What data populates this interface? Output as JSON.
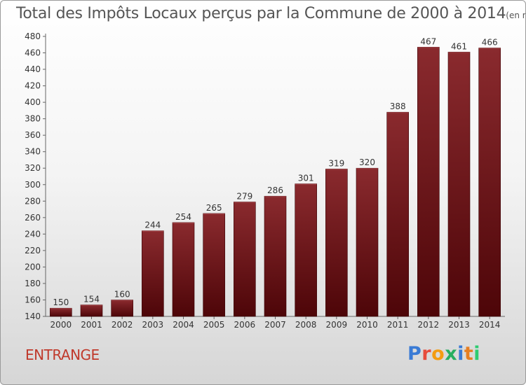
{
  "header": {
    "title": "Total des Impôts Locaux perçus par la Commune de 2000 à 2014",
    "unit": "(en milliers d'€)"
  },
  "footer": {
    "commune": "ENTRANGE",
    "brand": "Proxiti",
    "brand_colors": [
      "#3a7bd5",
      "#e74c3c",
      "#f39c12",
      "#27ae60",
      "#3a7bd5",
      "#e67e22",
      "#2ecc71"
    ]
  },
  "colors": {
    "bar": "#7b1c20",
    "bar_dark": "#4d0508",
    "axis_text": "#333333",
    "commune_text": "#c0392b"
  },
  "chart_data": {
    "type": "bar",
    "categories": [
      "2000",
      "2001",
      "2002",
      "2003",
      "2004",
      "2005",
      "2006",
      "2007",
      "2008",
      "2009",
      "2010",
      "2011",
      "2012",
      "2013",
      "2014"
    ],
    "values": [
      150,
      154,
      160,
      244,
      254,
      265,
      279,
      286,
      301,
      319,
      320,
      388,
      467,
      461,
      466
    ],
    "ylim": [
      140,
      480
    ],
    "yticks": [
      140,
      160,
      180,
      200,
      220,
      240,
      260,
      280,
      300,
      320,
      340,
      360,
      380,
      400,
      420,
      440,
      460,
      480
    ],
    "grid": false,
    "legend": "none"
  }
}
